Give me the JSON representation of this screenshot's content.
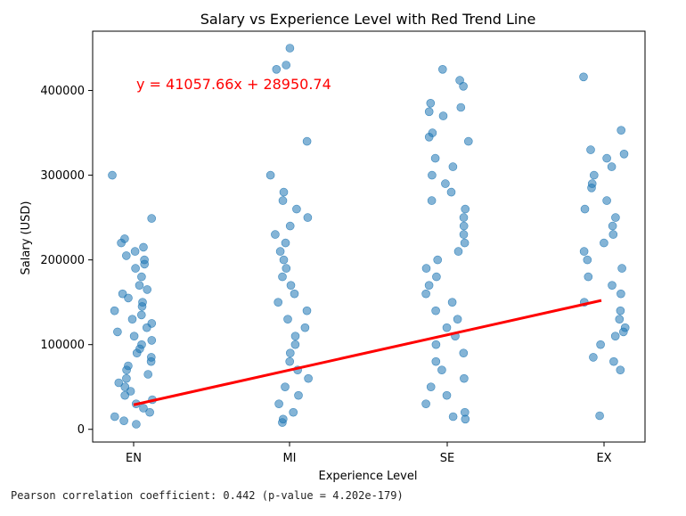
{
  "chart_data": {
    "type": "scatter",
    "title": "Salary vs Experience Level with Red Trend Line",
    "xlabel": "Experience Level",
    "ylabel": "Salary (USD)",
    "categories": [
      "EN",
      "MI",
      "SE",
      "EX"
    ],
    "ylim": [
      -15000,
      470000
    ],
    "yticks": [
      0,
      100000,
      200000,
      300000,
      400000
    ],
    "yticklabels": [
      "0",
      "100000",
      "200000",
      "300000",
      "400000"
    ],
    "grid": false,
    "point_color": "#1f77b4",
    "trend_color": "#ff0000",
    "series": [
      {
        "category": "EN",
        "values": [
          300000,
          249000,
          225000,
          220000,
          215000,
          210000,
          205000,
          200000,
          195000,
          190000,
          180000,
          170000,
          165000,
          160000,
          155000,
          150000,
          145000,
          140000,
          135000,
          130000,
          125000,
          120000,
          115000,
          110000,
          105000,
          100000,
          95000,
          90000,
          85000,
          80000,
          75000,
          70000,
          65000,
          60000,
          55000,
          50000,
          45000,
          40000,
          35000,
          30000,
          25000,
          20000,
          15000,
          10000,
          6000
        ]
      },
      {
        "category": "MI",
        "values": [
          450000,
          430000,
          425000,
          340000,
          300000,
          280000,
          270000,
          260000,
          250000,
          240000,
          230000,
          220000,
          210000,
          200000,
          190000,
          180000,
          170000,
          160000,
          150000,
          140000,
          130000,
          120000,
          110000,
          100000,
          90000,
          80000,
          70000,
          60000,
          50000,
          40000,
          30000,
          20000,
          12000,
          8000
        ]
      },
      {
        "category": "SE",
        "values": [
          425000,
          412000,
          405000,
          385000,
          380000,
          375000,
          370000,
          350000,
          345000,
          340000,
          320000,
          310000,
          300000,
          290000,
          280000,
          270000,
          260000,
          250000,
          240000,
          230000,
          220000,
          210000,
          200000,
          190000,
          180000,
          170000,
          160000,
          150000,
          140000,
          130000,
          120000,
          110000,
          100000,
          90000,
          80000,
          70000,
          60000,
          50000,
          40000,
          30000,
          20000,
          15000,
          12000
        ]
      },
      {
        "category": "EX",
        "values": [
          416000,
          353000,
          330000,
          325000,
          320000,
          310000,
          300000,
          290000,
          285000,
          270000,
          260000,
          250000,
          240000,
          230000,
          220000,
          210000,
          200000,
          190000,
          180000,
          170000,
          160000,
          150000,
          140000,
          130000,
          120000,
          115000,
          110000,
          100000,
          85000,
          80000,
          70000,
          16000
        ]
      }
    ],
    "trend_line": {
      "slope": 41057.66,
      "intercept": 28950.74,
      "x_start": 0,
      "x_end": 3,
      "equation_label": "y = 41057.66x + 28950.74"
    },
    "footer": "Pearson correlation coefficient: 0.442 (p-value = 4.202e-179)"
  }
}
